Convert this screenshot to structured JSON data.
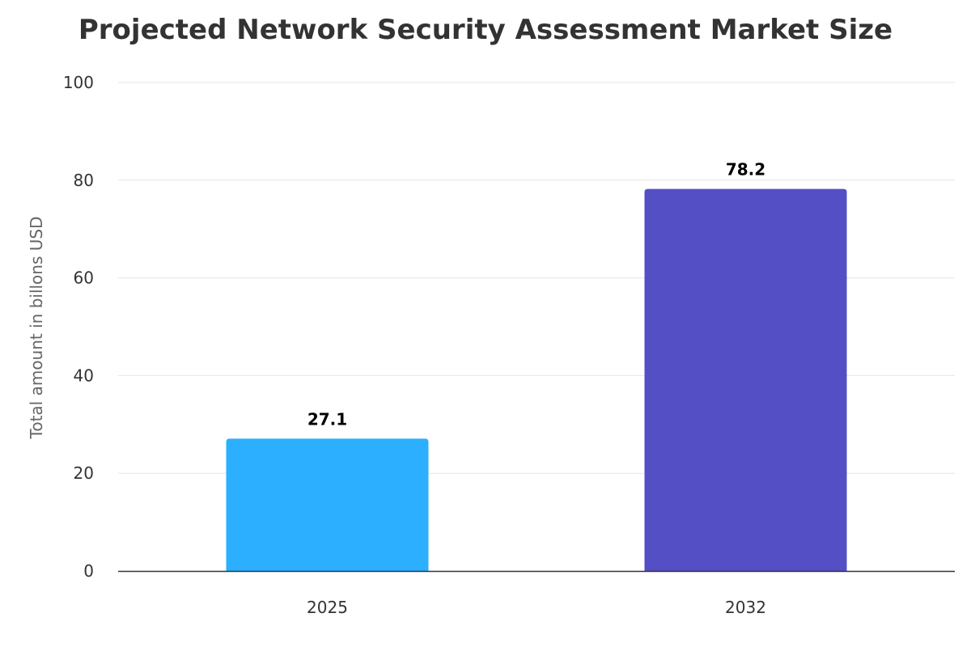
{
  "chart_data": {
    "type": "bar",
    "title": "Projected Network Security Assessment Market Size",
    "xlabel": "",
    "ylabel": "Total amount in billons USD",
    "categories": [
      "2025",
      "2032"
    ],
    "values": [
      27.1,
      78.2
    ],
    "data_labels": [
      "27.1",
      "78.2"
    ],
    "colors": [
      "#2caffe",
      "#544fc5"
    ],
    "ylim": [
      0,
      100
    ],
    "yticks": [
      "0",
      "20",
      "40",
      "60",
      "80",
      "100"
    ],
    "grid": true
  }
}
